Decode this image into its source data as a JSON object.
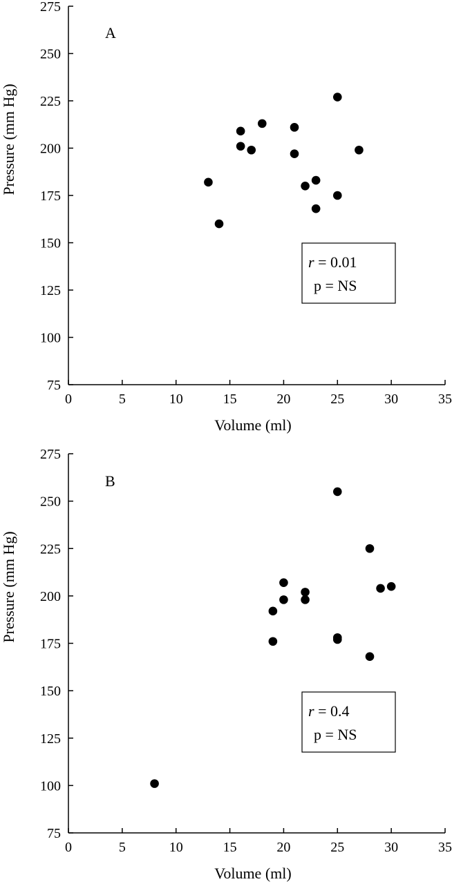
{
  "chart_data": [
    {
      "type": "scatter",
      "panel_label": "A",
      "xlabel": "Volume (ml)",
      "ylabel": "Pressure (mm Hg)",
      "xlim": [
        0,
        35
      ],
      "ylim": [
        75,
        275
      ],
      "x_ticks": [
        "0",
        "5",
        "10",
        "15",
        "20",
        "25",
        "30",
        "35"
      ],
      "y_ticks": [
        "75",
        "100",
        "125",
        "150",
        "175",
        "200",
        "225",
        "250",
        "275"
      ],
      "annotation": {
        "r_symbol": "r",
        "r_value": " = 0.01",
        "p_text": "p = NS",
        "position": "right"
      },
      "points": [
        {
          "x": 13,
          "y": 182
        },
        {
          "x": 14,
          "y": 160
        },
        {
          "x": 16,
          "y": 209
        },
        {
          "x": 16,
          "y": 201
        },
        {
          "x": 17,
          "y": 199
        },
        {
          "x": 18,
          "y": 213
        },
        {
          "x": 21,
          "y": 211
        },
        {
          "x": 21,
          "y": 197
        },
        {
          "x": 22,
          "y": 180
        },
        {
          "x": 23,
          "y": 183
        },
        {
          "x": 23,
          "y": 168
        },
        {
          "x": 25,
          "y": 227
        },
        {
          "x": 25,
          "y": 175
        },
        {
          "x": 27,
          "y": 199
        }
      ]
    },
    {
      "type": "scatter",
      "panel_label": "B",
      "xlabel": "Volume (ml)",
      "ylabel": "Pressure (mm Hg)",
      "xlim": [
        0,
        35
      ],
      "ylim": [
        75,
        275
      ],
      "x_ticks": [
        "0",
        "5",
        "10",
        "15",
        "20",
        "25",
        "30",
        "35"
      ],
      "y_ticks": [
        "75",
        "100",
        "125",
        "150",
        "175",
        "200",
        "225",
        "250",
        "275"
      ],
      "annotation": {
        "r_symbol": "r",
        "r_value": " = 0.4",
        "p_text": "p = NS",
        "position": "right"
      },
      "points": [
        {
          "x": 8,
          "y": 101
        },
        {
          "x": 19,
          "y": 192
        },
        {
          "x": 19,
          "y": 176
        },
        {
          "x": 20,
          "y": 207
        },
        {
          "x": 20,
          "y": 198
        },
        {
          "x": 22,
          "y": 202
        },
        {
          "x": 22,
          "y": 198
        },
        {
          "x": 25,
          "y": 255
        },
        {
          "x": 25,
          "y": 178
        },
        {
          "x": 25,
          "y": 177
        },
        {
          "x": 28,
          "y": 225
        },
        {
          "x": 28,
          "y": 168
        },
        {
          "x": 29,
          "y": 204
        },
        {
          "x": 30,
          "y": 205
        }
      ]
    }
  ]
}
